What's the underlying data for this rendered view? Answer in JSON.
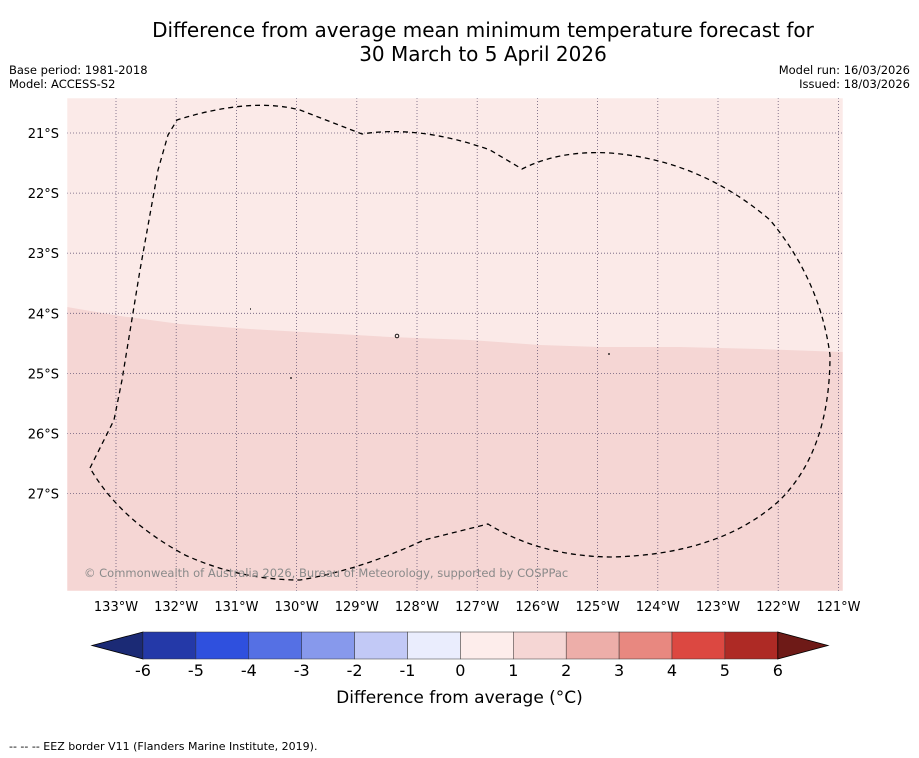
{
  "title": {
    "line1": "Difference from average mean minimum temperature forecast for",
    "line2": "30 March to 5 April 2026"
  },
  "meta_left": {
    "line1": "Base period: 1981-2018",
    "line2": "Model: ACCESS-S2"
  },
  "meta_right": {
    "line1": "Model run: 16/03/2026",
    "line2": "Issued: 18/03/2026"
  },
  "map": {
    "lon_ticks": [
      "133°W",
      "132°W",
      "131°W",
      "130°W",
      "129°W",
      "128°W",
      "127°W",
      "126°W",
      "125°W",
      "124°W",
      "123°W",
      "122°W",
      "121°W"
    ],
    "lat_ticks": [
      "21°S",
      "22°S",
      "23°S",
      "24°S",
      "25°S",
      "26°S",
      "27°S"
    ],
    "copyright": "© Commonwealth of Australia 2026, Bureau of Meteorology, supported by COSPPac",
    "regions": [
      {
        "name": "north",
        "class": "0 to 1",
        "color": "#fbeae8"
      },
      {
        "name": "south",
        "class": "1 to 2",
        "color": "#f5d6d4"
      }
    ]
  },
  "colorbar": {
    "tick_labels": [
      "-6",
      "-5",
      "-4",
      "-3",
      "-2",
      "-1",
      "0",
      "1",
      "2",
      "3",
      "4",
      "5",
      "6"
    ],
    "low_extend_color": "#1b2a75",
    "high_extend_color": "#6e1a17",
    "colors": [
      "#2439a8",
      "#2f50de",
      "#5570e4",
      "#8799ec",
      "#c2c9f6",
      "#eaedfd",
      "#fdedeb",
      "#f5d6d4",
      "#edaea9",
      "#e88880",
      "#dc4841",
      "#ae2a25"
    ],
    "label": "Difference from average (°C)"
  },
  "footer": "--  --  -- EEZ border V11 (Flanders Marine Institute, 2019)."
}
